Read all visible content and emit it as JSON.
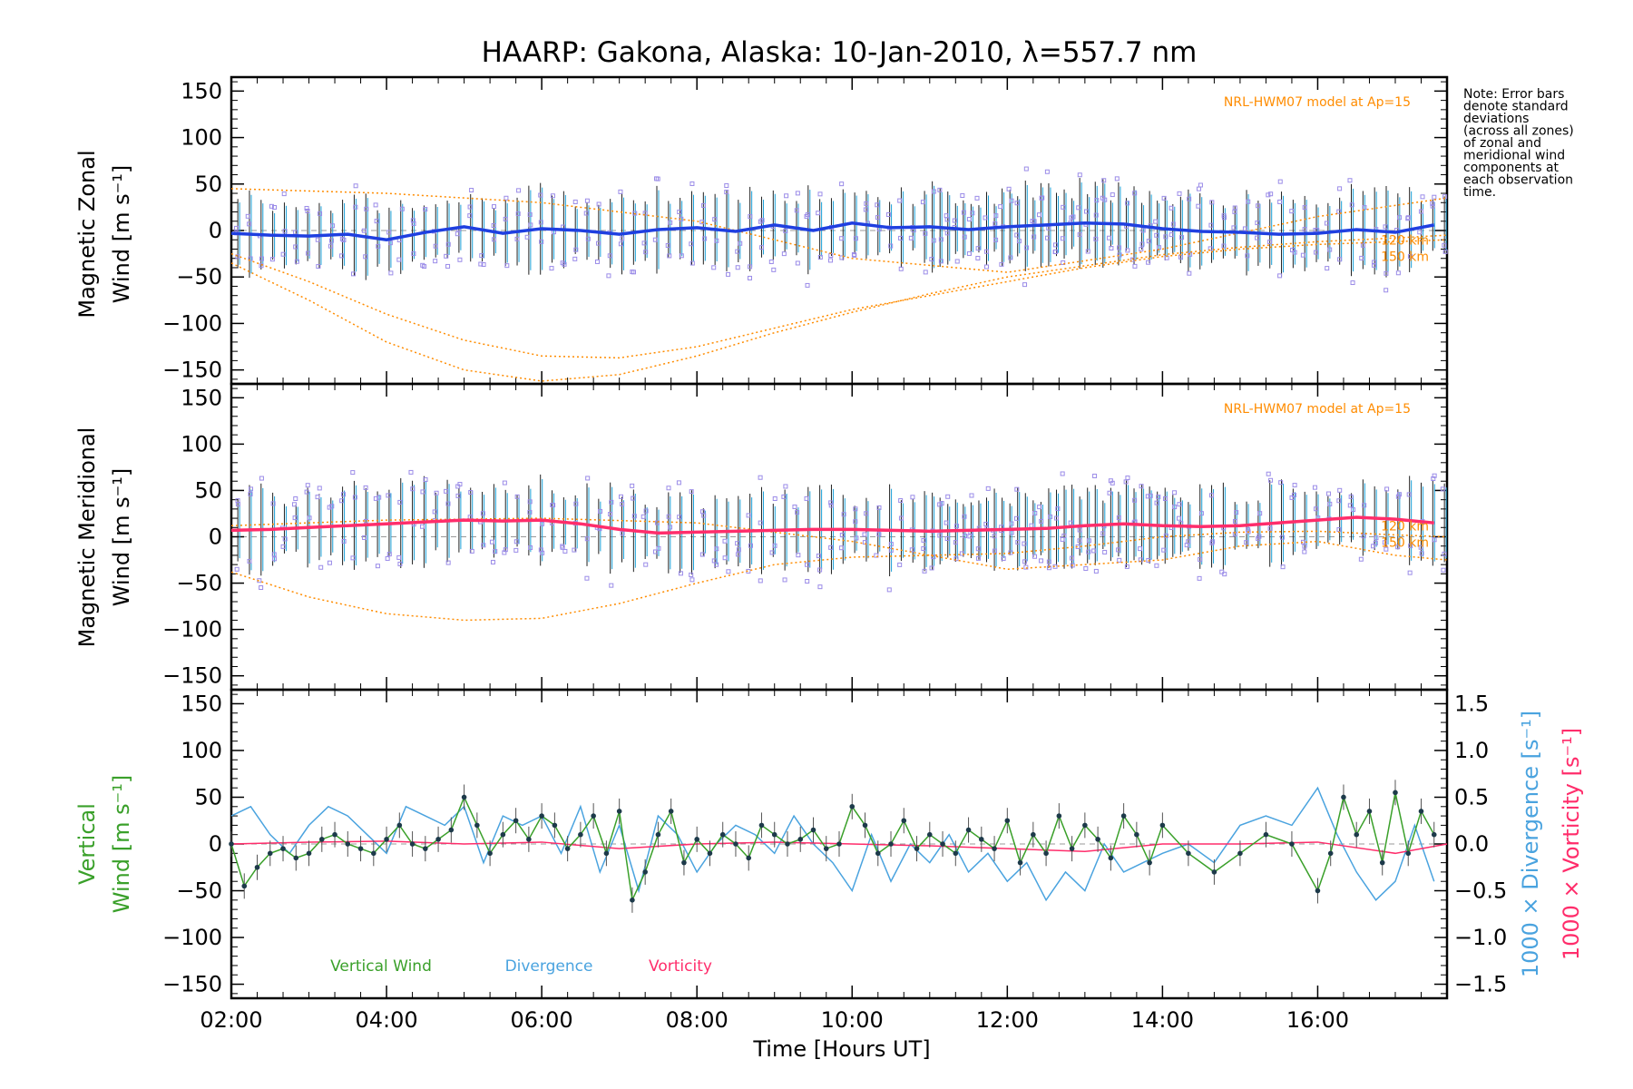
{
  "chart_data": [
    {
      "type": "scatter",
      "panel": "zonal",
      "title": "HAARP: Gakona,  Alaska: 10-Jan-2010, λ=557.7 nm",
      "ylabel_line1": "Magnetic Zonal",
      "ylabel_line2": "Wind [m s⁻¹]",
      "xlim": [
        "02:00",
        "17:40"
      ],
      "ylim": [
        -165,
        165
      ],
      "yticks": [
        "150",
        "100",
        "50",
        "0",
        "−50",
        "−100",
        "−150"
      ],
      "annotation": "NRL-HWM07 model at Ap=15",
      "model_heights": [
        "120 km",
        "150 km"
      ],
      "series": [
        {
          "name": "mean",
          "color": "#1f3fe0",
          "x": [
            "02:00",
            "02:30",
            "03:00",
            "03:30",
            "04:00",
            "04:30",
            "05:00",
            "05:30",
            "06:00",
            "06:30",
            "07:00",
            "07:30",
            "08:00",
            "08:30",
            "09:00",
            "09:30",
            "10:00",
            "10:30",
            "11:00",
            "11:30",
            "12:00",
            "12:30",
            "13:00",
            "13:30",
            "14:00",
            "14:30",
            "15:00",
            "15:30",
            "16:00",
            "16:30",
            "17:00",
            "17:30"
          ],
          "y": [
            -3,
            -5,
            -6,
            -4,
            -10,
            -2,
            4,
            -3,
            2,
            0,
            -4,
            1,
            3,
            -1,
            6,
            0,
            8,
            3,
            4,
            1,
            4,
            6,
            8,
            7,
            2,
            -1,
            -2,
            -4,
            -3,
            1,
            -2,
            6
          ]
        },
        {
          "name": "model 120 km",
          "color": "#ff8c00",
          "x": [
            "02:00",
            "03:00",
            "04:00",
            "05:00",
            "06:00",
            "07:00",
            "08:00",
            "09:00",
            "10:00",
            "11:00",
            "12:00",
            "13:00",
            "14:00",
            "15:00",
            "16:00",
            "17:00",
            "17:40"
          ],
          "y": [
            -25,
            -55,
            -90,
            -118,
            -135,
            -137,
            -125,
            -105,
            -85,
            -70,
            -55,
            -40,
            -28,
            -20,
            -15,
            -12,
            -10
          ]
        },
        {
          "name": "model 150 km",
          "color": "#ff8c00",
          "x": [
            "02:00",
            "03:00",
            "04:00",
            "05:00",
            "06:00",
            "07:00",
            "08:00",
            "09:00",
            "10:00",
            "11:00",
            "12:00",
            "13:00",
            "14:00",
            "15:00",
            "16:00",
            "17:00",
            "17:40"
          ],
          "y": [
            -35,
            -75,
            -120,
            -150,
            -162,
            -155,
            -135,
            -110,
            -88,
            -68,
            -50,
            -38,
            -26,
            -18,
            -12,
            -8,
            -5
          ]
        },
        {
          "name": "model upper",
          "color": "#ff8c00",
          "x": [
            "02:00",
            "04:00",
            "06:00",
            "08:00",
            "10:00",
            "12:00",
            "14:00",
            "16:00",
            "17:40"
          ],
          "y": [
            45,
            40,
            30,
            10,
            -30,
            -45,
            -20,
            15,
            35
          ]
        }
      ]
    },
    {
      "type": "scatter",
      "panel": "meridional",
      "ylabel_line1": "Magnetic Meridional",
      "ylabel_line2": "Wind [m s⁻¹]",
      "xlim": [
        "02:00",
        "17:40"
      ],
      "ylim": [
        -165,
        165
      ],
      "yticks": [
        "150",
        "100",
        "50",
        "0",
        "−50",
        "−100",
        "−150"
      ],
      "annotation": "NRL-HWM07 model at Ap=15",
      "model_heights": [
        "120 km",
        "150 km"
      ],
      "series": [
        {
          "name": "mean",
          "color": "#ff2d6b",
          "x": [
            "02:00",
            "02:30",
            "03:00",
            "03:30",
            "04:00",
            "04:30",
            "05:00",
            "05:30",
            "06:00",
            "06:30",
            "07:00",
            "07:30",
            "08:00",
            "08:30",
            "09:00",
            "09:30",
            "10:00",
            "10:30",
            "11:00",
            "11:30",
            "12:00",
            "12:30",
            "13:00",
            "13:30",
            "14:00",
            "14:30",
            "15:00",
            "15:30",
            "16:00",
            "16:30",
            "17:00",
            "17:30"
          ],
          "y": [
            7,
            8,
            10,
            12,
            14,
            16,
            18,
            17,
            18,
            14,
            8,
            4,
            5,
            6,
            7,
            8,
            8,
            7,
            6,
            7,
            8,
            9,
            12,
            14,
            12,
            11,
            12,
            15,
            18,
            21,
            19,
            15
          ]
        },
        {
          "name": "model lower",
          "color": "#ff8c00",
          "x": [
            "02:00",
            "03:00",
            "04:00",
            "05:00",
            "06:00",
            "07:00",
            "08:00",
            "09:00",
            "10:00",
            "11:00",
            "12:00",
            "13:00",
            "14:00",
            "15:00",
            "16:00",
            "17:00",
            "17:40"
          ],
          "y": [
            -38,
            -65,
            -83,
            -90,
            -88,
            -72,
            -50,
            -30,
            -22,
            -20,
            -18,
            -10,
            0,
            5,
            6,
            2,
            0
          ]
        },
        {
          "name": "model upper",
          "color": "#ff8c00",
          "x": [
            "02:00",
            "04:00",
            "06:00",
            "08:00",
            "10:00",
            "12:00",
            "14:00",
            "15:00",
            "16:00",
            "17:00",
            "17:40"
          ],
          "y": [
            12,
            18,
            20,
            15,
            -5,
            -35,
            -25,
            -10,
            -5,
            -20,
            -25
          ]
        }
      ]
    },
    {
      "type": "line",
      "panel": "vertical",
      "ylabel_line1": "Vertical",
      "ylabel_line2": "Wind [m s⁻¹]",
      "y2label_divergence": "1000 × Divergence [s⁻¹]",
      "y2label_vorticity": "1000 × Vorticity [s⁻¹]",
      "xlabel": "Time [Hours UT]",
      "xlim": [
        "02:00",
        "17:40"
      ],
      "xticks": [
        "02:00",
        "04:00",
        "06:00",
        "08:00",
        "10:00",
        "12:00",
        "14:00",
        "16:00"
      ],
      "ylim": [
        -165,
        165
      ],
      "yticks": [
        "150",
        "100",
        "50",
        "0",
        "−50",
        "−100",
        "−150"
      ],
      "y2lim": [
        -1.65,
        1.65
      ],
      "y2ticks": [
        "1.5",
        "1.0",
        "0.5",
        "0.0",
        "−0.5",
        "−1.0",
        "−1.5"
      ],
      "legend": [
        "Vertical Wind",
        "Divergence",
        "Vorticity"
      ],
      "series": [
        {
          "name": "Vertical Wind",
          "color": "#3aa02a",
          "x": [
            "02:00",
            "02:10",
            "02:20",
            "02:30",
            "02:40",
            "02:50",
            "03:00",
            "03:10",
            "03:20",
            "03:30",
            "03:40",
            "03:50",
            "04:00",
            "04:10",
            "04:20",
            "04:30",
            "04:40",
            "04:50",
            "05:00",
            "05:10",
            "05:20",
            "05:30",
            "05:40",
            "05:50",
            "06:00",
            "06:10",
            "06:20",
            "06:30",
            "06:40",
            "06:50",
            "07:00",
            "07:10",
            "07:20",
            "07:30",
            "07:40",
            "07:50",
            "08:00",
            "08:10",
            "08:20",
            "08:30",
            "08:40",
            "08:50",
            "09:00",
            "09:10",
            "09:20",
            "09:30",
            "09:40",
            "09:50",
            "10:00",
            "10:10",
            "10:20",
            "10:30",
            "10:40",
            "10:50",
            "11:00",
            "11:10",
            "11:20",
            "11:30",
            "11:40",
            "11:50",
            "12:00",
            "12:10",
            "12:20",
            "12:30",
            "12:40",
            "12:50",
            "13:00",
            "13:10",
            "13:20",
            "13:30",
            "13:40",
            "13:50",
            "14:00",
            "14:20",
            "14:40",
            "15:00",
            "15:20",
            "15:40",
            "16:00",
            "16:10",
            "16:20",
            "16:30",
            "16:40",
            "16:50",
            "17:00",
            "17:10",
            "17:20",
            "17:30"
          ],
          "y": [
            0,
            -45,
            -25,
            -10,
            -5,
            -15,
            -10,
            5,
            10,
            0,
            -5,
            -10,
            5,
            20,
            0,
            -5,
            5,
            15,
            50,
            20,
            -10,
            10,
            25,
            5,
            30,
            20,
            -5,
            10,
            30,
            -10,
            35,
            -60,
            -30,
            10,
            35,
            -20,
            5,
            -10,
            10,
            0,
            -15,
            20,
            10,
            0,
            5,
            15,
            -5,
            0,
            40,
            20,
            -10,
            0,
            25,
            -5,
            10,
            0,
            -10,
            15,
            5,
            -5,
            25,
            -20,
            10,
            -10,
            30,
            -5,
            20,
            5,
            -15,
            30,
            10,
            -20,
            20,
            -10,
            -30,
            -10,
            10,
            0,
            -50,
            -10,
            50,
            10,
            35,
            -20,
            55,
            -10,
            35,
            10
          ]
        },
        {
          "name": "Divergence",
          "color": "#4aa3df",
          "x": [
            "02:00",
            "02:15",
            "02:30",
            "02:45",
            "03:00",
            "03:15",
            "03:30",
            "03:45",
            "04:00",
            "04:15",
            "04:30",
            "04:45",
            "05:00",
            "05:15",
            "05:30",
            "05:45",
            "06:00",
            "06:15",
            "06:30",
            "06:45",
            "07:00",
            "07:15",
            "07:30",
            "07:45",
            "08:00",
            "08:15",
            "08:30",
            "08:45",
            "09:00",
            "09:15",
            "09:30",
            "09:45",
            "10:00",
            "10:15",
            "10:30",
            "10:45",
            "11:00",
            "11:15",
            "11:30",
            "11:45",
            "12:00",
            "12:15",
            "12:30",
            "12:45",
            "13:00",
            "13:15",
            "13:30",
            "13:45",
            "14:00",
            "14:20",
            "14:40",
            "15:00",
            "15:20",
            "15:40",
            "16:00",
            "16:15",
            "16:30",
            "16:45",
            "17:00",
            "17:15",
            "17:30"
          ],
          "y": [
            0.3,
            0.4,
            0.1,
            -0.1,
            0.2,
            0.4,
            0.3,
            0.1,
            -0.1,
            0.4,
            0.3,
            0.2,
            0.4,
            -0.2,
            0.3,
            0.2,
            0.3,
            -0.1,
            0.4,
            -0.3,
            0.2,
            -0.5,
            0.3,
            0.1,
            -0.3,
            0.0,
            0.2,
            0.1,
            -0.1,
            0.3,
            0.0,
            -0.2,
            -0.5,
            0.1,
            -0.4,
            0.0,
            -0.2,
            0.1,
            -0.3,
            -0.1,
            -0.4,
            -0.2,
            -0.6,
            -0.3,
            -0.5,
            0.0,
            -0.3,
            -0.2,
            -0.1,
            0.0,
            -0.2,
            0.2,
            0.3,
            0.2,
            0.6,
            0.1,
            -0.3,
            -0.6,
            -0.4,
            0.2,
            -0.4
          ]
        },
        {
          "name": "Vorticity",
          "color": "#ff2d6b",
          "x": [
            "02:00",
            "03:00",
            "04:00",
            "05:00",
            "06:00",
            "07:00",
            "08:00",
            "09:00",
            "10:00",
            "11:00",
            "12:00",
            "13:00",
            "14:00",
            "15:00",
            "16:00",
            "17:00",
            "17:40"
          ],
          "y": [
            0.0,
            0.02,
            0.03,
            0.0,
            0.02,
            -0.05,
            0.0,
            0.02,
            0.0,
            -0.02,
            -0.05,
            -0.08,
            0.0,
            0.0,
            0.02,
            -0.1,
            0.0
          ]
        }
      ]
    }
  ],
  "note_lines": [
    "Note: Error bars",
    "denote standard",
    "deviations",
    "(across all zones)",
    "of zonal and",
    "meridional wind",
    "components at",
    "each observation",
    "time."
  ],
  "colors": {
    "zonal_mean": "#1f3fe0",
    "meridional_mean": "#ff2d6b",
    "model": "#ff8c00",
    "vertical": "#3aa02a",
    "divergence": "#4aa3df",
    "vorticity": "#ff2d6b",
    "zone_points": "#9b8ce8"
  }
}
